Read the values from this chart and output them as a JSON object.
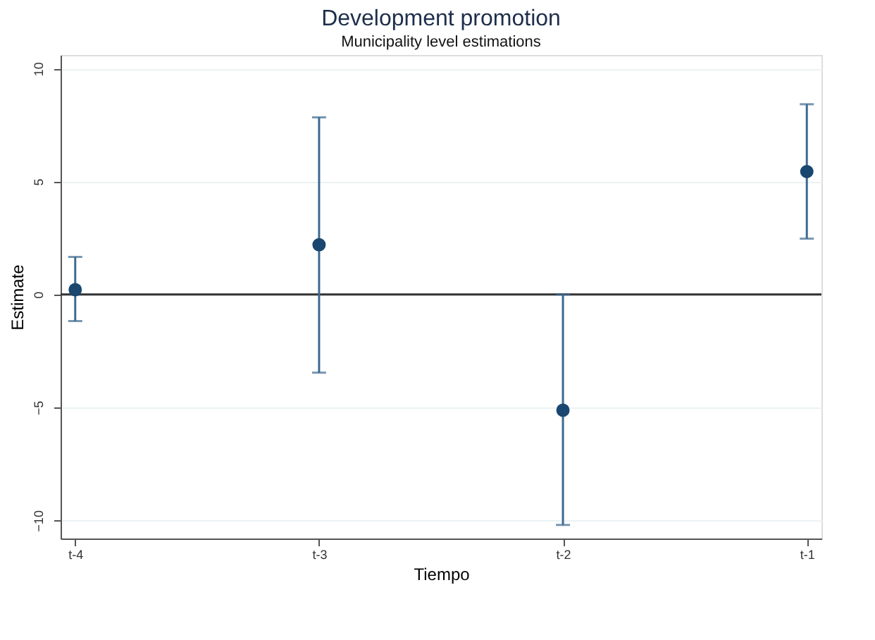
{
  "chart_data": {
    "type": "scatter",
    "title": "Development promotion",
    "subtitle": "Municipality level estimations",
    "xlabel": "Tiempo",
    "ylabel": "Estimate",
    "categories": [
      "t-4",
      "t-3",
      "t-2",
      "t-1"
    ],
    "series": [
      {
        "color": "#1a476f",
        "values": [
          0.21,
          2.2,
          -5.12,
          5.44
        ],
        "errors": [
          [
            -1.18,
            1.66
          ],
          [
            -3.46,
            7.84
          ],
          [
            -10.2,
            0.0
          ],
          [
            2.47,
            8.42
          ]
        ]
      }
    ],
    "ylim": [
      -10.8,
      10.6
    ],
    "yticks": [
      -10,
      -5,
      0,
      5,
      10
    ],
    "ref_lines": [
      {
        "axis": "y",
        "value": 0,
        "color": "#333333"
      }
    ],
    "grid": "y",
    "marker": "circle"
  }
}
